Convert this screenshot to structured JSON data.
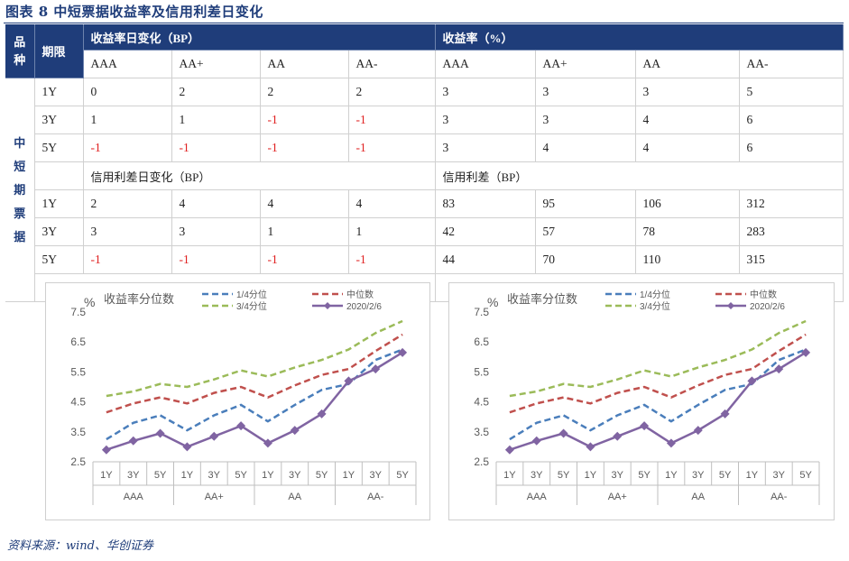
{
  "title": "图表 8    中短票据收益率及信用利差日变化",
  "table": {
    "col_variety": "品种",
    "col_term": "期限",
    "section1": "收益率日变化（BP）",
    "section2": "收益率（%）",
    "ratings": [
      "AAA",
      "AA+",
      "AA",
      "AA-"
    ],
    "variety": "中短期票据",
    "rows_a": [
      {
        "term": "1Y",
        "change": [
          "0",
          "2",
          "2",
          "2"
        ],
        "yield": [
          "3",
          "3",
          "3",
          "5"
        ]
      },
      {
        "term": "3Y",
        "change": [
          "1",
          "1",
          "-1",
          "-1"
        ],
        "yield": [
          "3",
          "3",
          "4",
          "6"
        ]
      },
      {
        "term": "5Y",
        "change": [
          "-1",
          "-1",
          "-1",
          "-1"
        ],
        "yield": [
          "3",
          "4",
          "4",
          "6"
        ]
      }
    ],
    "section3": "信用利差日变化（BP）",
    "section4": "信用利差（BP）",
    "rows_b": [
      {
        "term": "1Y",
        "change": [
          "2",
          "4",
          "4",
          "4"
        ],
        "spread": [
          "83",
          "95",
          "106",
          "312"
        ]
      },
      {
        "term": "3Y",
        "change": [
          "3",
          "3",
          "1",
          "1"
        ],
        "spread": [
          "42",
          "57",
          "78",
          "283"
        ]
      },
      {
        "term": "5Y",
        "change": [
          "-1",
          "-1",
          "-1",
          "-1"
        ],
        "spread": [
          "44",
          "70",
          "110",
          "315"
        ]
      }
    ]
  },
  "chart_data": [
    {
      "type": "line",
      "title": "收益率分位数",
      "ylabel": "%",
      "ylim": [
        2.5,
        7.5
      ],
      "yticks": [
        "7.5",
        "6.5",
        "5.5",
        "4.5",
        "3.5",
        "2.5"
      ],
      "categories": [
        "1Y",
        "3Y",
        "5Y",
        "1Y",
        "3Y",
        "5Y",
        "1Y",
        "3Y",
        "5Y",
        "1Y",
        "3Y",
        "5Y"
      ],
      "groups": [
        "AAA",
        "AA+",
        "AA",
        "AA-"
      ],
      "series": [
        {
          "name": "1/4分位",
          "color": "#4a7ebb",
          "style": "dashed",
          "values": [
            3.25,
            3.8,
            4.05,
            3.55,
            4.05,
            4.4,
            3.85,
            4.4,
            4.9,
            5.1,
            5.9,
            6.25
          ]
        },
        {
          "name": "中位数",
          "color": "#c0504d",
          "style": "dashed",
          "values": [
            4.15,
            4.45,
            4.65,
            4.45,
            4.8,
            5.0,
            4.65,
            5.05,
            5.4,
            5.6,
            6.2,
            6.75
          ]
        },
        {
          "name": "3/4分位",
          "color": "#9bbb59",
          "style": "dashed",
          "values": [
            4.7,
            4.85,
            5.1,
            5.0,
            5.25,
            5.55,
            5.35,
            5.65,
            5.9,
            6.25,
            6.8,
            7.2
          ]
        },
        {
          "name": "2020/2/6",
          "color": "#8064a2",
          "style": "solid-marker",
          "values": [
            2.9,
            3.2,
            3.45,
            3.0,
            3.35,
            3.7,
            3.12,
            3.55,
            4.1,
            5.2,
            5.6,
            6.15
          ]
        }
      ]
    },
    {
      "type": "line",
      "title": "收益率分位数",
      "ylabel": "%",
      "ylim": [
        2.5,
        7.5
      ],
      "yticks": [
        "7.5",
        "6.5",
        "5.5",
        "4.5",
        "3.5",
        "2.5"
      ],
      "categories": [
        "1Y",
        "3Y",
        "5Y",
        "1Y",
        "3Y",
        "5Y",
        "1Y",
        "3Y",
        "5Y",
        "1Y",
        "3Y",
        "5Y"
      ],
      "groups": [
        "AAA",
        "AA+",
        "AA",
        "AA-"
      ],
      "series": [
        {
          "name": "1/4分位",
          "color": "#4a7ebb",
          "style": "dashed",
          "values": [
            3.25,
            3.8,
            4.05,
            3.55,
            4.05,
            4.4,
            3.85,
            4.4,
            4.9,
            5.1,
            5.9,
            6.25
          ]
        },
        {
          "name": "中位数",
          "color": "#c0504d",
          "style": "dashed",
          "values": [
            4.15,
            4.45,
            4.65,
            4.45,
            4.8,
            5.0,
            4.65,
            5.05,
            5.4,
            5.6,
            6.2,
            6.75
          ]
        },
        {
          "name": "3/4分位",
          "color": "#9bbb59",
          "style": "dashed",
          "values": [
            4.7,
            4.85,
            5.1,
            5.0,
            5.25,
            5.55,
            5.35,
            5.65,
            5.9,
            6.25,
            6.8,
            7.2
          ]
        },
        {
          "name": "2020/2/6",
          "color": "#8064a2",
          "style": "solid-marker",
          "values": [
            2.9,
            3.2,
            3.45,
            3.0,
            3.35,
            3.7,
            3.12,
            3.55,
            4.1,
            5.2,
            5.6,
            6.15
          ]
        }
      ]
    }
  ],
  "source": "资料来源：wind、华创证券"
}
